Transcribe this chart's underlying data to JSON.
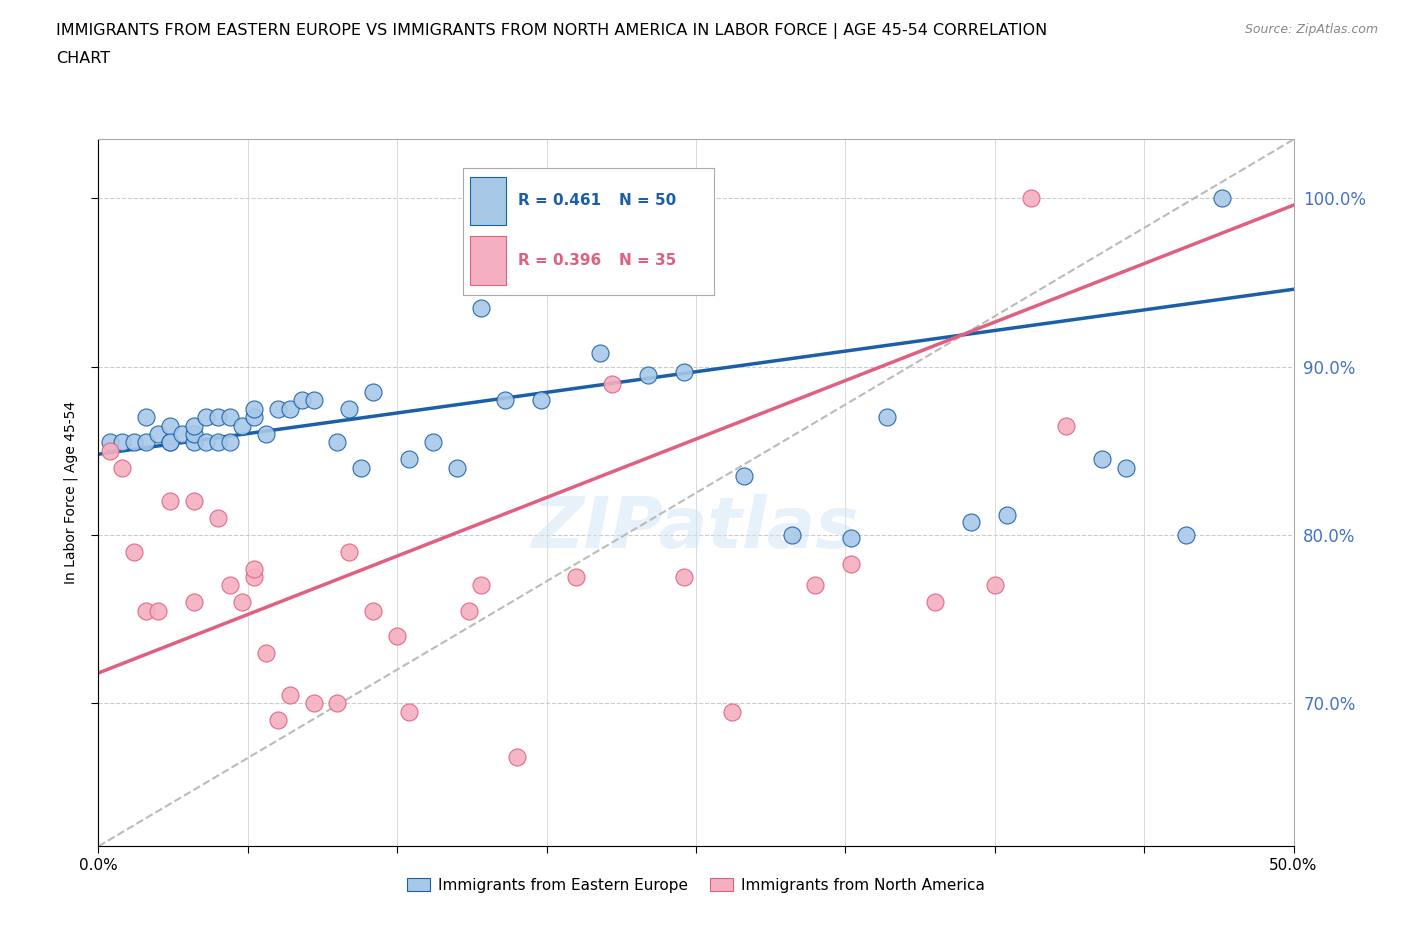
{
  "title_line1": "IMMIGRANTS FROM EASTERN EUROPE VS IMMIGRANTS FROM NORTH AMERICA IN LABOR FORCE | AGE 45-54 CORRELATION",
  "title_line2": "CHART",
  "source_text": "Source: ZipAtlas.com",
  "ylabel": "In Labor Force | Age 45-54",
  "xmin": 0.0,
  "xmax": 0.5,
  "ymin": 0.615,
  "ymax": 1.035,
  "yticks": [
    0.7,
    0.8,
    0.9,
    1.0
  ],
  "ytick_labels": [
    "70.0%",
    "80.0%",
    "90.0%",
    "100.0%"
  ],
  "xticks": [
    0.0,
    0.0625,
    0.125,
    0.1875,
    0.25,
    0.3125,
    0.375,
    0.4375,
    0.5
  ],
  "xtick_labels": [
    "0.0%",
    "",
    "",
    "",
    "",
    "",
    "",
    "",
    "50.0%"
  ],
  "blue_R": 0.461,
  "blue_N": 50,
  "pink_R": 0.396,
  "pink_N": 35,
  "blue_color": "#A8C8E8",
  "pink_color": "#F4B0C0",
  "blue_line_color": "#1A5FA8",
  "pink_line_color": "#E06080",
  "ref_line_color": "#BBBBBB",
  "legend_blue_label": "Immigrants from Eastern Europe",
  "legend_pink_label": "Immigrants from North America",
  "right_axis_color": "#4472C4",
  "blue_scatter_x": [
    0.005,
    0.01,
    0.015,
    0.02,
    0.02,
    0.025,
    0.03,
    0.03,
    0.03,
    0.035,
    0.04,
    0.04,
    0.04,
    0.045,
    0.045,
    0.05,
    0.05,
    0.055,
    0.055,
    0.06,
    0.065,
    0.065,
    0.07,
    0.075,
    0.08,
    0.085,
    0.09,
    0.1,
    0.105,
    0.11,
    0.115,
    0.13,
    0.14,
    0.15,
    0.16,
    0.17,
    0.185,
    0.21,
    0.23,
    0.245,
    0.27,
    0.29,
    0.315,
    0.33,
    0.365,
    0.38,
    0.42,
    0.43,
    0.455,
    0.47
  ],
  "blue_scatter_y": [
    0.855,
    0.855,
    0.855,
    0.87,
    0.855,
    0.86,
    0.855,
    0.865,
    0.855,
    0.86,
    0.855,
    0.86,
    0.865,
    0.855,
    0.87,
    0.855,
    0.87,
    0.855,
    0.87,
    0.865,
    0.87,
    0.875,
    0.86,
    0.875,
    0.875,
    0.88,
    0.88,
    0.855,
    0.875,
    0.84,
    0.885,
    0.845,
    0.855,
    0.84,
    0.935,
    0.88,
    0.88,
    0.908,
    0.895,
    0.897,
    0.835,
    0.8,
    0.798,
    0.87,
    0.808,
    0.812,
    0.845,
    0.84,
    0.8,
    1.0
  ],
  "pink_scatter_x": [
    0.005,
    0.01,
    0.015,
    0.02,
    0.025,
    0.03,
    0.04,
    0.04,
    0.05,
    0.055,
    0.06,
    0.065,
    0.065,
    0.07,
    0.075,
    0.08,
    0.09,
    0.1,
    0.105,
    0.115,
    0.125,
    0.13,
    0.155,
    0.16,
    0.175,
    0.2,
    0.215,
    0.245,
    0.265,
    0.3,
    0.315,
    0.35,
    0.375,
    0.39,
    0.405
  ],
  "pink_scatter_y": [
    0.85,
    0.84,
    0.79,
    0.755,
    0.755,
    0.82,
    0.76,
    0.82,
    0.81,
    0.77,
    0.76,
    0.775,
    0.78,
    0.73,
    0.69,
    0.705,
    0.7,
    0.7,
    0.79,
    0.755,
    0.74,
    0.695,
    0.755,
    0.77,
    0.668,
    0.775,
    0.89,
    0.775,
    0.695,
    0.77,
    0.783,
    0.76,
    0.77,
    1.0,
    0.865
  ],
  "background_color": "#FFFFFF",
  "grid_color": "#CCCCCC",
  "axis_label_color": "#4472C4",
  "title_fontsize": 12,
  "axis_label_fontsize": 10,
  "blue_line_intercept": 0.848,
  "blue_line_slope": 0.196,
  "pink_line_intercept": 0.718,
  "pink_line_slope": 0.556
}
